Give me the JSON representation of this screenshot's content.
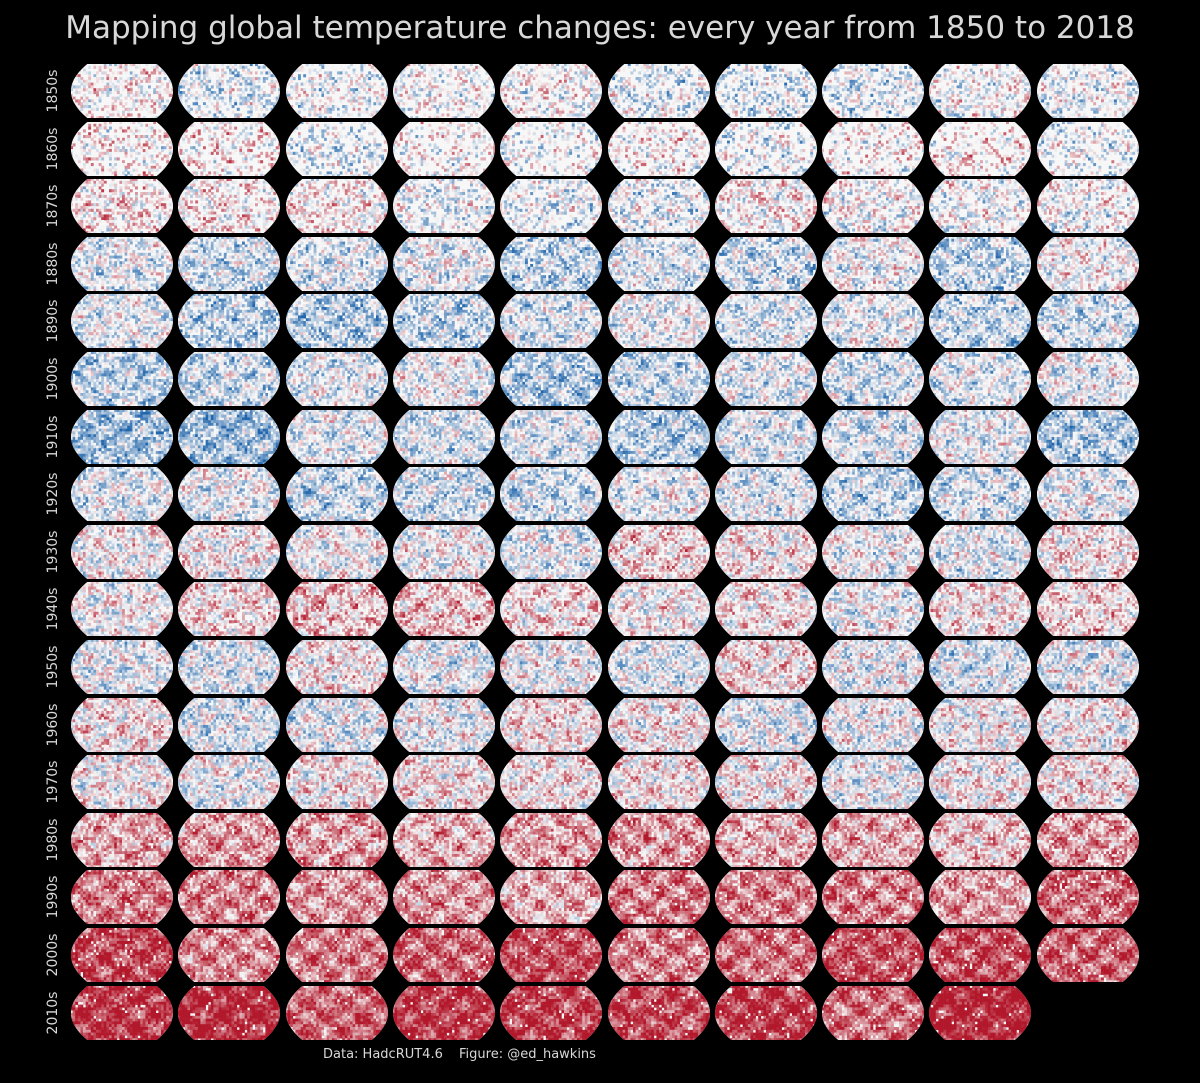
{
  "title": "Mapping global temperature changes: every year from 1850 to 2018",
  "footer": {
    "data_credit": "Data: HadcRUT4.6",
    "figure_credit": "Figure: @ed_hawkins"
  },
  "colors": {
    "background": "#000000",
    "text": "#d8d8d8",
    "cold": "#2166ac",
    "neutral": "#f7f7f7",
    "warm": "#b2182b"
  },
  "chart_data": {
    "type": "heatmap",
    "title": "Mapping global temperature changes: every year from 1850 to 2018",
    "layout": "small multiples of world maps, one per year, rows by decade",
    "colormap": "RdBu_r (blue = colder, red = warmer)",
    "decades": [
      "1850s",
      "1860s",
      "1870s",
      "1880s",
      "1890s",
      "1900s",
      "1910s",
      "1920s",
      "1930s",
      "1940s",
      "1950s",
      "1960s",
      "1970s",
      "1980s",
      "1990s",
      "2000s",
      "2010s"
    ],
    "years_per_decade": [
      10,
      10,
      10,
      10,
      10,
      10,
      10,
      10,
      10,
      10,
      10,
      10,
      10,
      10,
      10,
      10,
      9
    ],
    "first_year": 1850,
    "last_year": 2018,
    "coverage": [
      0.55,
      0.45,
      0.6,
      0.75,
      0.78,
      0.82,
      0.85,
      0.82,
      0.85,
      0.83,
      0.9,
      0.92,
      0.93,
      0.94,
      0.95,
      0.96,
      0.96
    ],
    "warmth": [
      -0.05,
      0.0,
      0.0,
      -0.15,
      -0.2,
      -0.2,
      -0.25,
      -0.15,
      0.05,
      0.12,
      -0.02,
      0.0,
      0.02,
      0.25,
      0.45,
      0.6,
      0.72
    ]
  }
}
